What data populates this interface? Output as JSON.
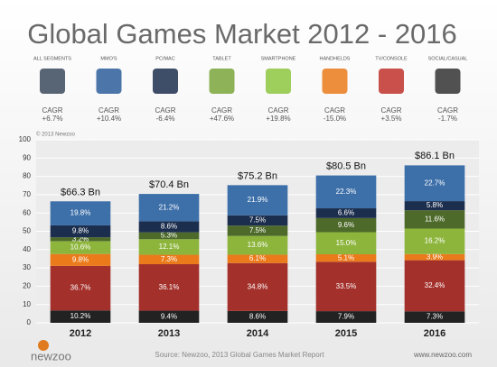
{
  "header": {
    "title": "Global Games Market 2012 - 2016"
  },
  "segments": [
    {
      "label": "ALL SEGMENTS",
      "cagr_caption": "CAGR",
      "cagr": "+6.7%"
    },
    {
      "label": "MMO'S",
      "cagr_caption": "CAGR",
      "cagr": "+10.4%"
    },
    {
      "label": "PC/MAC",
      "cagr_caption": "CAGR",
      "cagr": "-6.4%"
    },
    {
      "label": "TABLET",
      "cagr_caption": "CAGR",
      "cagr": "+47.6%"
    },
    {
      "label": "SMARTPHONE",
      "cagr_caption": "CAGR",
      "cagr": "+19.8%"
    },
    {
      "label": "HANDHELDS",
      "cagr_caption": "CAGR",
      "cagr": "-15.0%"
    },
    {
      "label": "TV/CONSOLE",
      "cagr_caption": "CAGR",
      "cagr": "+3.5%"
    },
    {
      "label": "SOCIAL/CASUAL",
      "cagr_caption": "CAGR",
      "cagr": "-1.7%"
    }
  ],
  "chart_data": {
    "type": "bar",
    "copyright": "© 2013 Newzoo",
    "categories": [
      "2012",
      "2013",
      "2014",
      "2015",
      "2016"
    ],
    "values": [
      66.3,
      70.4,
      75.2,
      80.5,
      86.1
    ],
    "value_labels": [
      "$66.3 Bn",
      "$70.4 Bn",
      "$75.2 Bn",
      "$80.5 Bn",
      "$86.1 Bn"
    ],
    "series": [
      {
        "color": "#222222",
        "values": [
          10.2,
          9.4,
          8.6,
          7.9,
          7.3
        ],
        "value_labels": [
          "10.2%",
          "9.4%",
          "8.6%",
          "7.9%",
          "7.3%"
        ]
      },
      {
        "color": "#a3302b",
        "values": [
          36.7,
          36.1,
          34.8,
          33.5,
          32.4
        ],
        "value_labels": [
          "36.7%",
          "36.1%",
          "34.8%",
          "33.5%",
          "32.4%"
        ]
      },
      {
        "color": "#ea7a1a",
        "values": [
          9.8,
          7.3,
          6.1,
          5.1,
          3.9
        ],
        "value_labels": [
          "9.8%",
          "7.3%",
          "6.1%",
          "5.1%",
          "3.9%"
        ]
      },
      {
        "color": "#8db53c",
        "values": [
          10.6,
          12.1,
          13.6,
          15.0,
          16.2
        ],
        "value_labels": [
          "10.6%",
          "12.1%",
          "13.6%",
          "15.0%",
          "16.2%"
        ]
      },
      {
        "color": "#4d6a2a",
        "values": [
          3.2,
          5.3,
          7.5,
          9.6,
          11.6
        ],
        "value_labels": [
          "3.2%",
          "5.3%",
          "7.5%",
          "9.6%",
          "11.6%"
        ]
      },
      {
        "color": "#1c2e4e",
        "values": [
          9.8,
          8.6,
          7.5,
          6.6,
          5.8
        ],
        "value_labels": [
          "9.8%",
          "8.6%",
          "7.5%",
          "6.6%",
          "5.8%"
        ]
      },
      {
        "color": "#3d6fa9",
        "values": [
          19.8,
          21.2,
          21.9,
          22.3,
          22.7
        ],
        "value_labels": [
          "19.8%",
          "21.2%",
          "21.9%",
          "22.3%",
          "22.7%"
        ]
      }
    ],
    "ylim": [
      0,
      100
    ],
    "yticks": [
      0,
      10,
      20,
      30,
      40,
      50,
      60,
      70,
      80,
      90,
      100
    ],
    "grid": true,
    "source": "Source: Newzoo, 2013 Global Games Market Report",
    "website": "www.newzoo.com",
    "logo": "newzoo"
  }
}
